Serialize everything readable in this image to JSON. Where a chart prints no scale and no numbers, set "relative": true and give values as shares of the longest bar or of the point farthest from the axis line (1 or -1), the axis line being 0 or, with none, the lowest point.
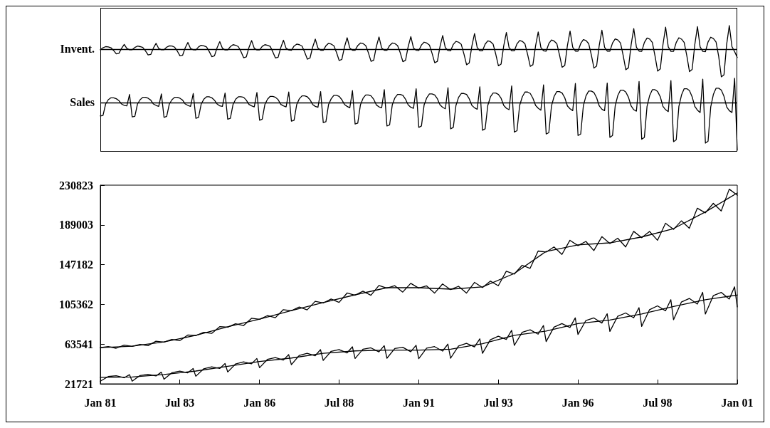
{
  "chart_data": [
    {
      "type": "line",
      "relative": true,
      "ylabel": "Invent.",
      "marker": "none",
      "categories": [
        null,
        null,
        null,
        null,
        null,
        null,
        null,
        null,
        null,
        null,
        null,
        null,
        null,
        null,
        null,
        null,
        null,
        null,
        null,
        null,
        null,
        null,
        null,
        null,
        null,
        null,
        null,
        null,
        null,
        null,
        null,
        null,
        null,
        null,
        null,
        null,
        null,
        null,
        null,
        null,
        null,
        null,
        null,
        null,
        null,
        null,
        null,
        null,
        null,
        null,
        null,
        null,
        null,
        null,
        null,
        null,
        null,
        null,
        null,
        null,
        null,
        null,
        null,
        null,
        null,
        null,
        null,
        null,
        null,
        null,
        null,
        null,
        null,
        null,
        null,
        null,
        null,
        null,
        null,
        null,
        null,
        null,
        null,
        null,
        null,
        null,
        null,
        null,
        null,
        null,
        null,
        null,
        null,
        null,
        null,
        null,
        null,
        null,
        null,
        null,
        null,
        null,
        null,
        null,
        null,
        null,
        null,
        null,
        null,
        null,
        null,
        null,
        null,
        null,
        null,
        null,
        null,
        null,
        null,
        null,
        null,
        null,
        null,
        null,
        null,
        null,
        null,
        null,
        null,
        null,
        null,
        null,
        null,
        null,
        null,
        null,
        null,
        null,
        null,
        null,
        null,
        null,
        null,
        null,
        null,
        null,
        null,
        null,
        null,
        null,
        null,
        null,
        null,
        null,
        null,
        null,
        null,
        null,
        null,
        null,
        null,
        null,
        null,
        null,
        null,
        null,
        null,
        null,
        null,
        null,
        null,
        null,
        null,
        null,
        null,
        null,
        null,
        null,
        null,
        null,
        null,
        null,
        null,
        null,
        null,
        null,
        null,
        null,
        null,
        null,
        null,
        null,
        null,
        null,
        null,
        null,
        null,
        null,
        null,
        null,
        null,
        null,
        null,
        null,
        null,
        null,
        null,
        null,
        null,
        null,
        null,
        null,
        null,
        null,
        null,
        null,
        null,
        null,
        null,
        null,
        null,
        null,
        null,
        null,
        null,
        null,
        null,
        null,
        null,
        null,
        null,
        null,
        null,
        null,
        null,
        null,
        null,
        null,
        null,
        null,
        null
      ],
      "series": [
        {
          "color": "#000000",
          "values": [
            -0.02,
            0.05,
            0.09,
            0.08,
            0.05,
            -0.05,
            -0.17,
            -0.15,
            0.03,
            0.17,
            0.02,
            -0.02,
            -0.02,
            0.06,
            0.11,
            0.09,
            0.06,
            -0.06,
            -0.21,
            -0.19,
            0.04,
            0.21,
            0.02,
            -0.02,
            -0.02,
            0.07,
            0.12,
            0.11,
            0.07,
            -0.07,
            -0.24,
            -0.22,
            0.05,
            0.24,
            0.02,
            -0.02,
            -0.03,
            0.08,
            0.14,
            0.12,
            0.08,
            -0.08,
            -0.27,
            -0.24,
            0.05,
            0.27,
            0.03,
            -0.03,
            -0.03,
            0.09,
            0.16,
            0.14,
            0.09,
            -0.09,
            -0.31,
            -0.28,
            0.06,
            0.31,
            0.03,
            -0.03,
            -0.03,
            0.1,
            0.16,
            0.14,
            0.1,
            -0.1,
            -0.32,
            -0.29,
            0.06,
            0.32,
            0.03,
            -0.03,
            -0.04,
            0.11,
            0.18,
            0.16,
            0.11,
            -0.11,
            -0.36,
            -0.32,
            0.07,
            0.36,
            0.04,
            -0.04,
            -0.04,
            0.12,
            0.21,
            0.18,
            0.12,
            -0.12,
            -0.41,
            -0.37,
            0.08,
            0.41,
            0.04,
            -0.04,
            -0.04,
            0.13,
            0.22,
            0.2,
            0.13,
            -0.13,
            -0.44,
            -0.4,
            0.09,
            0.44,
            0.04,
            -0.04,
            -0.04,
            0.13,
            0.22,
            0.2,
            0.13,
            -0.13,
            -0.45,
            -0.4,
            0.09,
            0.45,
            0.04,
            -0.04,
            -0.05,
            0.15,
            0.25,
            0.22,
            0.15,
            -0.15,
            -0.49,
            -0.44,
            0.1,
            0.49,
            0.05,
            -0.05,
            -0.06,
            0.17,
            0.28,
            0.25,
            0.17,
            -0.17,
            -0.56,
            -0.5,
            0.11,
            0.56,
            0.06,
            -0.06,
            -0.06,
            0.18,
            0.3,
            0.27,
            0.18,
            -0.18,
            -0.6,
            -0.54,
            0.12,
            0.6,
            0.06,
            -0.06,
            -0.06,
            0.19,
            0.31,
            0.28,
            0.19,
            -0.19,
            -0.62,
            -0.56,
            0.12,
            0.62,
            0.06,
            -0.06,
            -0.07,
            0.2,
            0.33,
            0.29,
            0.2,
            -0.2,
            -0.65,
            -0.59,
            0.13,
            0.65,
            0.07,
            -0.07,
            -0.07,
            0.2,
            0.34,
            0.31,
            0.2,
            -0.2,
            -0.68,
            -0.61,
            0.14,
            0.68,
            0.07,
            -0.07,
            -0.07,
            0.22,
            0.37,
            0.33,
            0.22,
            -0.22,
            -0.74,
            -0.67,
            0.15,
            0.74,
            0.07,
            -0.07,
            -0.08,
            0.24,
            0.4,
            0.36,
            0.24,
            -0.24,
            -0.79,
            -0.71,
            0.16,
            0.79,
            0.08,
            -0.08,
            -0.08,
            0.24,
            0.41,
            0.36,
            0.24,
            -0.24,
            -0.81,
            -0.73,
            0.16,
            0.81,
            0.08,
            -0.08,
            -0.09,
            0.26,
            0.43,
            0.38,
            0.26,
            -0.26,
            -1,
            -0.92,
            0.17,
            0.85,
            0.09,
            -0.09,
            -0.3
          ]
        }
      ],
      "ref_lines": [
        {
          "axis": "y",
          "value": 0,
          "color": "#000000"
        }
      ]
    },
    {
      "type": "line",
      "relative": true,
      "ylabel": "Sales",
      "marker": "none",
      "categories": [
        null,
        null,
        null,
        null,
        null,
        null,
        null,
        null,
        null,
        null,
        null,
        null,
        null,
        null,
        null,
        null,
        null,
        null,
        null,
        null,
        null,
        null,
        null,
        null,
        null,
        null,
        null,
        null,
        null,
        null,
        null,
        null,
        null,
        null,
        null,
        null,
        null,
        null,
        null,
        null,
        null,
        null,
        null,
        null,
        null,
        null,
        null,
        null,
        null,
        null,
        null,
        null,
        null,
        null,
        null,
        null,
        null,
        null,
        null,
        null,
        null,
        null,
        null,
        null,
        null,
        null,
        null,
        null,
        null,
        null,
        null,
        null,
        null,
        null,
        null,
        null,
        null,
        null,
        null,
        null,
        null,
        null,
        null,
        null,
        null,
        null,
        null,
        null,
        null,
        null,
        null,
        null,
        null,
        null,
        null,
        null,
        null,
        null,
        null,
        null,
        null,
        null,
        null,
        null,
        null,
        null,
        null,
        null,
        null,
        null,
        null,
        null,
        null,
        null,
        null,
        null,
        null,
        null,
        null,
        null,
        null,
        null,
        null,
        null,
        null,
        null,
        null,
        null,
        null,
        null,
        null,
        null,
        null,
        null,
        null,
        null,
        null,
        null,
        null,
        null,
        null,
        null,
        null,
        null,
        null,
        null,
        null,
        null,
        null,
        null,
        null,
        null,
        null,
        null,
        null,
        null,
        null,
        null,
        null,
        null,
        null,
        null,
        null,
        null,
        null,
        null,
        null,
        null,
        null,
        null,
        null,
        null,
        null,
        null,
        null,
        null,
        null,
        null,
        null,
        null,
        null,
        null,
        null,
        null,
        null,
        null,
        null,
        null,
        null,
        null,
        null,
        null,
        null,
        null,
        null,
        null,
        null,
        null,
        null,
        null,
        null,
        null,
        null,
        null,
        null,
        null,
        null,
        null,
        null,
        null,
        null,
        null,
        null,
        null,
        null,
        null,
        null,
        null,
        null,
        null,
        null,
        null,
        null,
        null,
        null,
        null,
        null,
        null,
        null,
        null,
        null,
        null,
        null,
        null,
        null,
        null,
        null,
        null,
        null,
        null,
        null
      ],
      "series": [
        {
          "color": "#000000",
          "values": [
            -0.28,
            -0.27,
            -0.03,
            0.06,
            0.1,
            0.1,
            0.08,
            0.04,
            -0.03,
            -0.06,
            -0.07,
            0.17,
            -0.3,
            -0.29,
            -0.03,
            0.06,
            0.11,
            0.11,
            0.09,
            0.05,
            -0.03,
            -0.06,
            -0.08,
            0.18,
            -0.31,
            -0.29,
            -0.03,
            0.06,
            0.11,
            0.11,
            0.09,
            0.05,
            -0.03,
            -0.06,
            -0.08,
            0.19,
            -0.33,
            -0.31,
            -0.03,
            0.07,
            0.12,
            0.12,
            0.1,
            0.05,
            -0.03,
            -0.07,
            -0.08,
            0.2,
            -0.35,
            -0.33,
            -0.04,
            0.07,
            0.12,
            0.12,
            0.11,
            0.05,
            -0.04,
            -0.07,
            -0.09,
            0.21,
            -0.37,
            -0.35,
            -0.04,
            0.07,
            0.13,
            0.13,
            0.11,
            0.06,
            -0.04,
            -0.07,
            -0.09,
            0.22,
            -0.39,
            -0.37,
            -0.04,
            0.08,
            0.14,
            0.14,
            0.12,
            0.06,
            -0.04,
            -0.08,
            -0.1,
            0.23,
            -0.42,
            -0.4,
            -0.04,
            0.08,
            0.15,
            0.15,
            0.13,
            0.06,
            -0.04,
            -0.08,
            -0.11,
            0.25,
            -0.45,
            -0.43,
            -0.05,
            0.09,
            0.16,
            0.16,
            0.14,
            0.07,
            -0.05,
            -0.09,
            -0.11,
            0.27,
            -0.49,
            -0.47,
            -0.05,
            0.1,
            0.17,
            0.17,
            0.15,
            0.07,
            -0.05,
            -0.1,
            -0.12,
            0.29,
            -0.52,
            -0.49,
            -0.05,
            0.1,
            0.18,
            0.18,
            0.16,
            0.08,
            -0.05,
            -0.1,
            -0.13,
            0.31,
            -0.55,
            -0.52,
            -0.06,
            0.11,
            0.19,
            0.19,
            0.17,
            0.08,
            -0.06,
            -0.11,
            -0.14,
            0.33,
            -0.58,
            -0.55,
            -0.06,
            0.12,
            0.2,
            0.2,
            0.17,
            0.09,
            -0.06,
            -0.12,
            -0.15,
            0.35,
            -0.62,
            -0.59,
            -0.06,
            0.12,
            0.22,
            0.22,
            0.19,
            0.09,
            -0.06,
            -0.12,
            -0.16,
            0.37,
            -0.66,
            -0.63,
            -0.07,
            0.13,
            0.23,
            0.23,
            0.2,
            0.1,
            -0.07,
            -0.13,
            -0.17,
            0.4,
            -0.69,
            -0.66,
            -0.07,
            0.14,
            0.24,
            0.24,
            0.21,
            0.1,
            -0.07,
            -0.14,
            -0.17,
            0.41,
            -0.73,
            -0.69,
            -0.07,
            0.15,
            0.26,
            0.26,
            0.22,
            0.11,
            -0.07,
            -0.15,
            -0.18,
            0.44,
            -0.77,
            -0.73,
            -0.08,
            0.15,
            0.27,
            0.27,
            0.23,
            0.12,
            -0.08,
            -0.15,
            -0.19,
            0.46,
            -0.82,
            -0.78,
            -0.08,
            0.16,
            0.29,
            0.29,
            0.25,
            0.12,
            -0.08,
            -0.16,
            -0.21,
            0.49,
            -0.85,
            -0.81,
            -0.09,
            0.17,
            0.3,
            0.3,
            0.26,
            0.13,
            -0.09,
            -0.17,
            -0.21,
            0.51,
            -1
          ]
        }
      ],
      "ref_lines": [
        {
          "axis": "y",
          "value": 0,
          "color": "#000000"
        }
      ]
    },
    {
      "type": "line",
      "marker": "none",
      "grid": false,
      "xlim": [
        "1981-01",
        "2001-01"
      ],
      "xticks": [
        {
          "value": "1981-01",
          "label": "Jan 81"
        },
        {
          "value": "1983-07",
          "label": "Jul 83"
        },
        {
          "value": "1986-01",
          "label": "Jan 86"
        },
        {
          "value": "1988-07",
          "label": "Jul 88"
        },
        {
          "value": "1991-01",
          "label": "Jan 91"
        },
        {
          "value": "1993-07",
          "label": "Jul 93"
        },
        {
          "value": "1996-01",
          "label": "Jan 96"
        },
        {
          "value": "1998-07",
          "label": "Jul 98"
        },
        {
          "value": "2001-01",
          "label": "Jan 01"
        }
      ],
      "ylim": [
        21721,
        230823
      ],
      "yticks": [
        21721,
        63541,
        105362,
        147182,
        189003,
        230823
      ],
      "series": [
        {
          "color": "#000000",
          "x": [
            "1981-01",
            "1981-04",
            "1981-07",
            "1981-10",
            "1982-01",
            "1982-04",
            "1982-07",
            "1982-10",
            "1983-01",
            "1983-04",
            "1983-07",
            "1983-10",
            "1984-01",
            "1984-04",
            "1984-07",
            "1984-10",
            "1985-01",
            "1985-04",
            "1985-07",
            "1985-10",
            "1986-01",
            "1986-04",
            "1986-07",
            "1986-10",
            "1987-01",
            "1987-04",
            "1987-07",
            "1987-10",
            "1988-01",
            "1988-04",
            "1988-07",
            "1988-10",
            "1989-01",
            "1989-04",
            "1989-07",
            "1989-10",
            "1990-01",
            "1990-04",
            "1990-07",
            "1990-10",
            "1991-01",
            "1991-04",
            "1991-07",
            "1991-10",
            "1992-01",
            "1992-04",
            "1992-07",
            "1992-10",
            "1993-01",
            "1993-04",
            "1993-07",
            "1993-10",
            "1994-01",
            "1994-04",
            "1994-07",
            "1994-10",
            "1995-01",
            "1995-04",
            "1995-07",
            "1995-10",
            "1996-01",
            "1996-04",
            "1996-07",
            "1996-10",
            "1997-01",
            "1997-04",
            "1997-07",
            "1997-10",
            "1998-01",
            "1998-04",
            "1998-07",
            "1998-10",
            "1999-01",
            "1999-04",
            "1999-07",
            "1999-10",
            "2000-01",
            "2000-04",
            "2000-07",
            "2000-10",
            "2001-01"
          ],
          "values": [
            59800,
            61000,
            59200,
            62500,
            61200,
            63300,
            61900,
            66600,
            65700,
            68500,
            67200,
            73100,
            72500,
            76000,
            74800,
            81900,
            81400,
            85000,
            83000,
            90700,
            89600,
            93500,
            91300,
            99800,
            98600,
            102600,
            99600,
            108600,
            106800,
            111000,
            107400,
            117300,
            115000,
            119200,
            114900,
            125300,
            122400,
            125000,
            118300,
            127500,
            122400,
            124800,
            117200,
            126800,
            120900,
            124400,
            117200,
            128500,
            123100,
            129900,
            125000,
            140200,
            137300,
            146500,
            143300,
            161500,
            160400,
            165800,
            157900,
            172800,
            167200,
            171600,
            162000,
            176600,
            169400,
            175000,
            165800,
            182200,
            175500,
            182100,
            172800,
            190800,
            184300,
            193300,
            185500,
            206600,
            201700,
            211700,
            203600,
            226600,
            220300
          ]
        },
        {
          "color": "#000000",
          "x": [
            "1981-01",
            "1982-01",
            "1983-01",
            "1984-01",
            "1985-01",
            "1986-01",
            "1987-01",
            "1988-01",
            "1989-01",
            "1990-01",
            "1991-01",
            "1992-01",
            "1993-01",
            "1994-01",
            "1995-01",
            "1996-01",
            "1997-01",
            "1998-01",
            "1999-01",
            "2000-01",
            "2001-01"
          ],
          "values": [
            59900,
            61400,
            65900,
            72700,
            81700,
            89900,
            98900,
            107200,
            115400,
            122900,
            122900,
            121400,
            123700,
            137900,
            161100,
            167900,
            170100,
            176300,
            185100,
            202600,
            222600
          ]
        },
        {
          "color": "#000000",
          "x": [
            "1981-01",
            "1981-04",
            "1981-07",
            "1981-10",
            "1981-12",
            "1982-01",
            "1982-04",
            "1982-07",
            "1982-10",
            "1982-12",
            "1983-01",
            "1983-04",
            "1983-07",
            "1983-10",
            "1983-12",
            "1984-01",
            "1984-04",
            "1984-07",
            "1984-10",
            "1984-12",
            "1985-01",
            "1985-04",
            "1985-07",
            "1985-10",
            "1985-12",
            "1986-01",
            "1986-04",
            "1986-07",
            "1986-10",
            "1986-12",
            "1987-01",
            "1987-04",
            "1987-07",
            "1987-10",
            "1987-12",
            "1988-01",
            "1988-04",
            "1988-07",
            "1988-10",
            "1988-12",
            "1989-01",
            "1989-04",
            "1989-07",
            "1989-10",
            "1989-12",
            "1990-01",
            "1990-04",
            "1990-07",
            "1990-10",
            "1990-12",
            "1991-01",
            "1991-04",
            "1991-07",
            "1991-10",
            "1991-12",
            "1992-01",
            "1992-04",
            "1992-07",
            "1992-10",
            "1992-12",
            "1993-01",
            "1993-04",
            "1993-07",
            "1993-10",
            "1993-12",
            "1994-01",
            "1994-04",
            "1994-07",
            "1994-10",
            "1994-12",
            "1995-01",
            "1995-04",
            "1995-07",
            "1995-10",
            "1995-12",
            "1996-01",
            "1996-04",
            "1996-07",
            "1996-10",
            "1996-12",
            "1997-01",
            "1997-04",
            "1997-07",
            "1997-10",
            "1997-12",
            "1998-01",
            "1998-04",
            "1998-07",
            "1998-10",
            "1998-12",
            "1999-01",
            "1999-04",
            "1999-07",
            "1999-10",
            "1999-12",
            "2000-01",
            "2000-04",
            "2000-07",
            "2000-10",
            "2000-12",
            "2001-01"
          ],
          "values": [
            24500,
            29400,
            30200,
            28100,
            31400,
            24500,
            30500,
            31800,
            30000,
            34000,
            26500,
            33400,
            35100,
            33300,
            37900,
            29700,
            37600,
            39600,
            37900,
            43100,
            34200,
            42700,
            44800,
            42800,
            48400,
            38700,
            47400,
            49300,
            46700,
            52500,
            41900,
            51600,
            53900,
            51300,
            57700,
            46400,
            56000,
            57800,
            54300,
            60700,
            48400,
            58200,
            59600,
            55400,
            61900,
            48700,
            58900,
            60200,
            55500,
            62300,
            48200,
            59300,
            60900,
            56200,
            63500,
            48700,
            61500,
            64400,
            60600,
            69100,
            53900,
            68100,
            71800,
            68500,
            78000,
            62200,
            75900,
            78600,
            74000,
            83100,
            66200,
            81400,
            85100,
            81000,
            91100,
            73700,
            88400,
            91100,
            85700,
            95500,
            76900,
            92900,
            96300,
            91200,
            101900,
            82200,
            99800,
            103800,
            98600,
            110300,
            89200,
            107800,
            111600,
            105700,
            118000,
            95200,
            114500,
            118000,
            111000,
            123800,
            102700
          ]
        },
        {
          "color": "#000000",
          "x": [
            "1981-01",
            "1982-01",
            "1983-01",
            "1984-01",
            "1985-01",
            "1986-01",
            "1987-01",
            "1988-01",
            "1989-01",
            "1990-01",
            "1991-01",
            "1992-01",
            "1993-01",
            "1994-01",
            "1995-01",
            "1996-01",
            "1997-01",
            "1998-01",
            "1999-01",
            "2000-01",
            "2001-01"
          ],
          "values": [
            28500,
            29000,
            31500,
            35200,
            40200,
            45200,
            48900,
            53900,
            56400,
            57200,
            57200,
            58200,
            63900,
            72700,
            77200,
            85200,
            88900,
            95200,
            103200,
            110200,
            115200
          ]
        }
      ]
    }
  ]
}
